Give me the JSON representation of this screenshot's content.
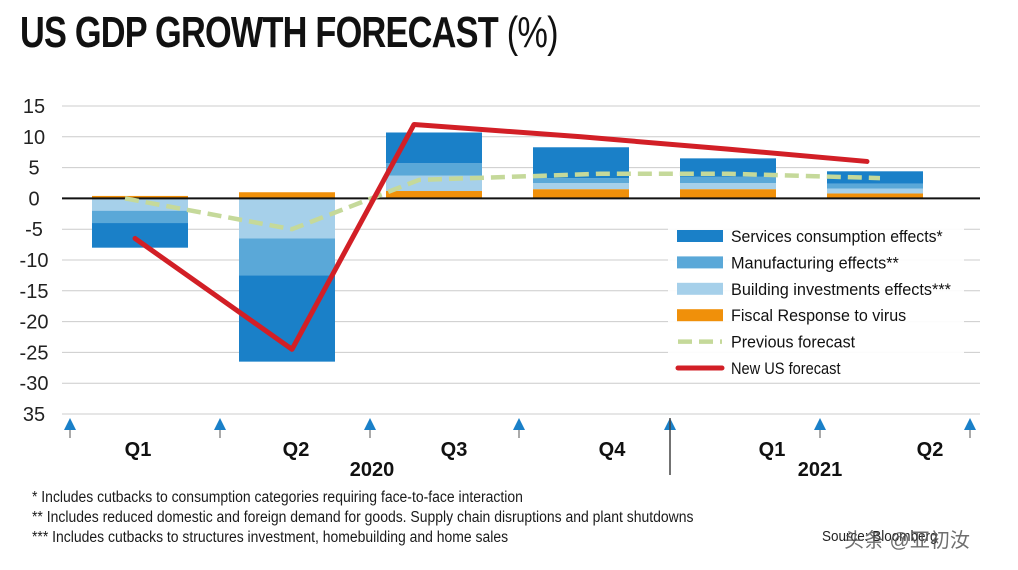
{
  "title": "US GDP GROWTH FORECAST",
  "title_unit": "(%)",
  "chart_data": {
    "type": "bar",
    "stacked": true,
    "categories": [
      "Q1",
      "Q2",
      "Q3",
      "Q4",
      "Q1",
      "Q2"
    ],
    "year_labels": [
      "2020",
      "2021"
    ],
    "y_tick_labels": [
      "15",
      "10",
      "5",
      "0",
      "-5",
      "-10",
      "-15",
      "-20",
      "-25",
      "-30",
      "35"
    ],
    "ylim": [
      -35,
      15
    ],
    "series": [
      {
        "name": "Fiscal Response to virus",
        "color": "#f0900a",
        "values": [
          0.4,
          1.0,
          1.2,
          1.5,
          1.5,
          0.8
        ]
      },
      {
        "name": "Building investments effects***",
        "color": "#a6d0ea",
        "values": [
          -2.0,
          -6.5,
          2.5,
          1.0,
          1.0,
          0.8
        ]
      },
      {
        "name": "Manufacturing effects**",
        "color": "#5aa8d8",
        "values": [
          -2.0,
          -6.0,
          2.0,
          0.8,
          1.0,
          0.8
        ]
      },
      {
        "name": "Services consumption effects*",
        "color": "#1a80c8",
        "values": [
          -4.0,
          -14.0,
          5.0,
          5.0,
          3.0,
          2.0
        ]
      },
      {
        "name": "Previous forecast",
        "type": "line",
        "color": "#c5d99a",
        "values": [
          0,
          -5.0,
          3.0,
          4.0,
          4.0,
          3.3
        ]
      },
      {
        "name": "New US forecast",
        "type": "line",
        "color": "#d21f26",
        "values": [
          -6.5,
          -24.5,
          12.0,
          10.0,
          8.0,
          6.0
        ]
      }
    ],
    "legend": [
      {
        "label": "Services consumption effects*",
        "kind": "box",
        "color": "#1a80c8"
      },
      {
        "label": "Manufacturing effects**",
        "kind": "box",
        "color": "#5aa8d8"
      },
      {
        "label": "Building investments effects***",
        "kind": "box",
        "color": "#a6d0ea"
      },
      {
        "label": "Fiscal Response to virus",
        "kind": "box",
        "color": "#f0900a"
      },
      {
        "label": "Previous forecast",
        "kind": "dash",
        "color": "#c5d99a"
      },
      {
        "label": "New US forecast",
        "kind": "line",
        "color": "#d21f26"
      }
    ],
    "legend_position": "right",
    "grid": true
  },
  "notes": [
    "* Includes cutbacks to consumption categories requiring face-to-face interaction",
    "** Includes reduced domestic and foreign demand for goods. Supply chain disruptions and plant shutdowns",
    "*** Includes cutbacks to structures investment, homebuilding and home sales"
  ],
  "source": "Source: Bloomberg",
  "watermark": "头条 @亚初汝",
  "colors": {
    "marker": "#1a80c8",
    "axis": "#111111",
    "grid": "#cccccc"
  }
}
